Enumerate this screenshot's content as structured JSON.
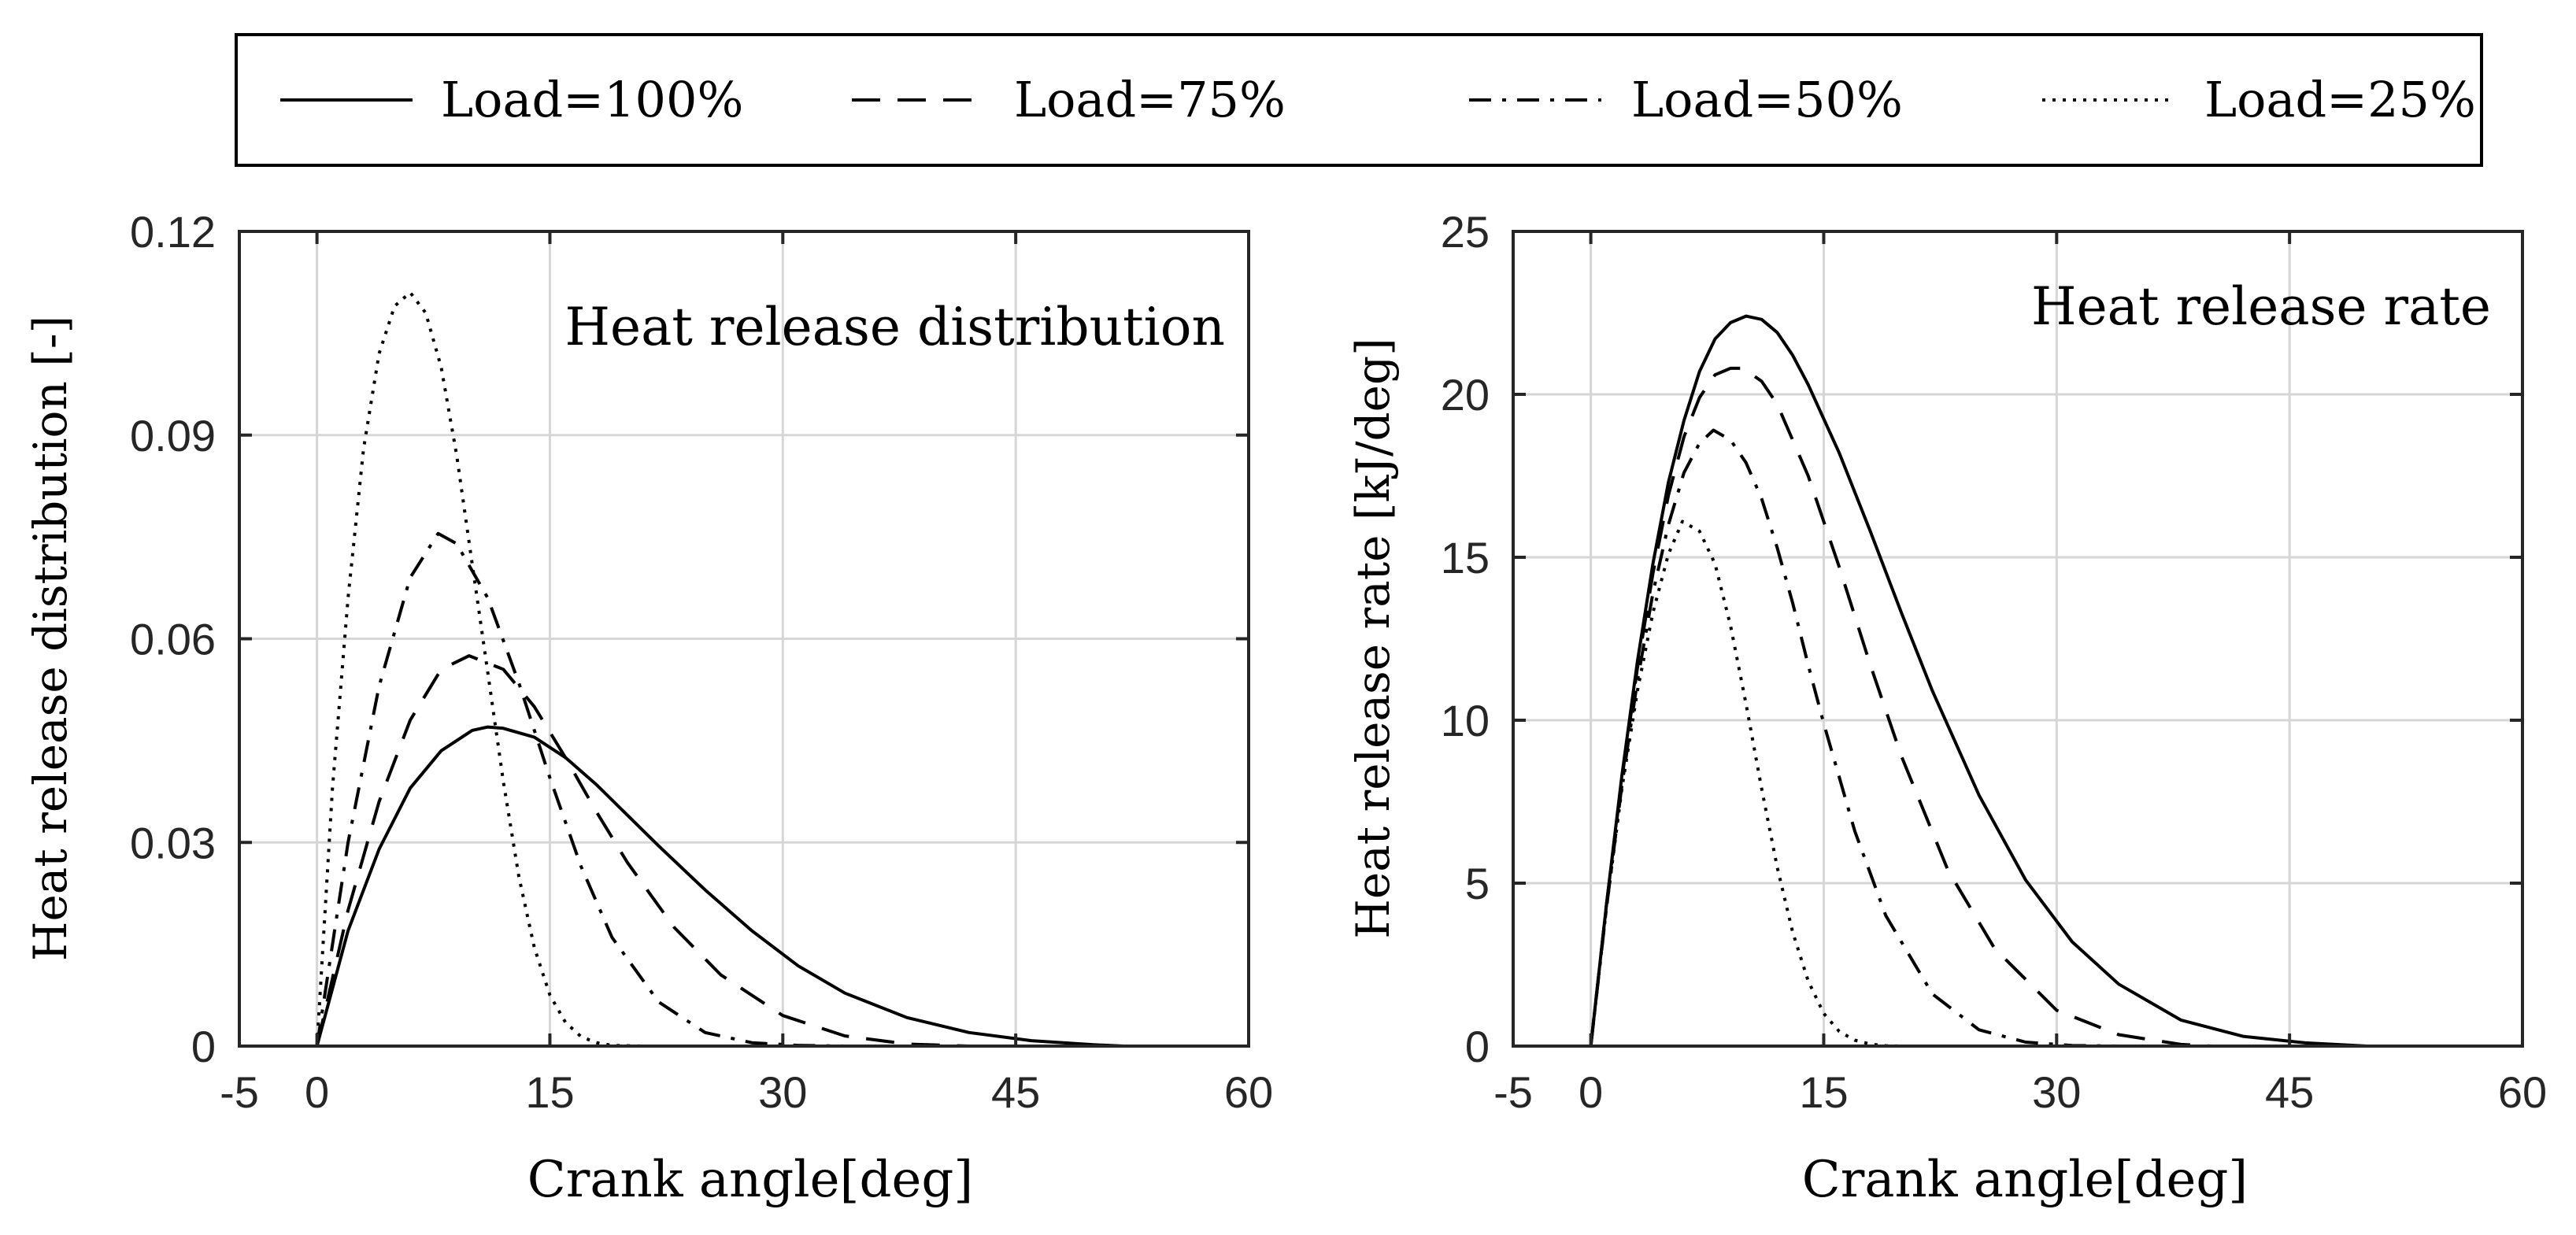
{
  "legend": {
    "entries": [
      {
        "label": "Load=100%",
        "style": "solid"
      },
      {
        "label": "Load=75%",
        "style": "dashed"
      },
      {
        "label": "Load=50%",
        "style": "dashdot"
      },
      {
        "label": "Load=25%",
        "style": "dotted"
      }
    ]
  },
  "chart_data": [
    {
      "type": "line",
      "title": "Heat release distribution",
      "xlabel": "Crank angle[deg]",
      "ylabel": "Heat release distribution [-]",
      "xlim": [
        -5,
        60
      ],
      "ylim": [
        0,
        0.12
      ],
      "xticks": [
        -5,
        0,
        15,
        30,
        45,
        60
      ],
      "yticks": [
        0,
        0.03,
        0.06,
        0.09,
        0.12
      ],
      "xtick_labels": [
        "-5",
        "0",
        "15",
        "30",
        "45",
        "60"
      ],
      "ytick_labels": [
        "0",
        "0.03",
        "0.06",
        "0.09",
        "0.12"
      ],
      "grid": true,
      "series": [
        {
          "name": "Load=100%",
          "style": "solid",
          "x": [
            0,
            2,
            4,
            6,
            8,
            10,
            11,
            12,
            14,
            16,
            18,
            20,
            22,
            25,
            28,
            31,
            34,
            38,
            42,
            46,
            50,
            52
          ],
          "y": [
            0,
            0.017,
            0.029,
            0.038,
            0.0435,
            0.0465,
            0.047,
            0.0468,
            0.0455,
            0.0425,
            0.0385,
            0.034,
            0.0295,
            0.023,
            0.017,
            0.0118,
            0.0078,
            0.0042,
            0.002,
            0.0008,
            0.0002,
            0
          ]
        },
        {
          "name": "Load=75%",
          "style": "dashed",
          "x": [
            0,
            2,
            4,
            6,
            8,
            9.8,
            12,
            14,
            16,
            18,
            20,
            23,
            26,
            30,
            34,
            38,
            42
          ],
          "y": [
            0,
            0.02,
            0.036,
            0.048,
            0.0555,
            0.0575,
            0.0555,
            0.05,
            0.0425,
            0.0345,
            0.027,
            0.0175,
            0.0105,
            0.0045,
            0.0015,
            0.0003,
            0
          ]
        },
        {
          "name": "Load=50%",
          "style": "dashdot",
          "x": [
            0,
            2,
            4,
            6,
            7.8,
            9,
            11,
            13,
            15,
            17,
            19,
            22,
            25,
            28,
            31,
            34
          ],
          "y": [
            0,
            0.03,
            0.053,
            0.069,
            0.0755,
            0.074,
            0.066,
            0.0535,
            0.0395,
            0.0265,
            0.016,
            0.0065,
            0.002,
            0.0005,
            0.0001,
            0
          ]
        },
        {
          "name": "Load=25%",
          "style": "dotted",
          "x": [
            0,
            1,
            2,
            3,
            4,
            5,
            6,
            7,
            8,
            9,
            10,
            11,
            12,
            13,
            14,
            15,
            16,
            17,
            18,
            19,
            21
          ],
          "y": [
            0,
            0.038,
            0.066,
            0.088,
            0.102,
            0.109,
            0.111,
            0.108,
            0.1,
            0.087,
            0.071,
            0.055,
            0.039,
            0.025,
            0.0145,
            0.0075,
            0.0035,
            0.0014,
            0.0005,
            0.0001,
            0
          ]
        }
      ]
    },
    {
      "type": "line",
      "title": "Heat release rate",
      "xlabel": "Crank angle[deg]",
      "ylabel": "Heat release rate [kJ/deg]",
      "xlim": [
        -5,
        60
      ],
      "ylim": [
        0,
        25
      ],
      "xticks": [
        -5,
        0,
        15,
        30,
        45,
        60
      ],
      "yticks": [
        0,
        5,
        10,
        15,
        20,
        25
      ],
      "xtick_labels": [
        "-5",
        "0",
        "15",
        "30",
        "45",
        "60"
      ],
      "ytick_labels": [
        "0",
        "5",
        "10",
        "15",
        "20",
        "25"
      ],
      "grid": true,
      "series": [
        {
          "name": "Load=100%",
          "style": "solid",
          "x": [
            0,
            1,
            2,
            3,
            4,
            5,
            6,
            7,
            8,
            9,
            10,
            11,
            12,
            13,
            14,
            16,
            18,
            20,
            22,
            25,
            28,
            31,
            34,
            38,
            42,
            46,
            50
          ],
          "y": [
            0,
            4.3,
            8.3,
            11.8,
            14.8,
            17.3,
            19.2,
            20.7,
            21.7,
            22.2,
            22.4,
            22.3,
            21.9,
            21.2,
            20.3,
            18.2,
            15.8,
            13.3,
            10.9,
            7.7,
            5.1,
            3.2,
            1.9,
            0.8,
            0.3,
            0.1,
            0
          ]
        },
        {
          "name": "Load=75%",
          "style": "dashed",
          "x": [
            0,
            1,
            2,
            3,
            4,
            5,
            6,
            7,
            8,
            9,
            9.8,
            11,
            12,
            14,
            16,
            18,
            20,
            23,
            26,
            30,
            34,
            38,
            40
          ],
          "y": [
            0,
            4.3,
            8.2,
            11.6,
            14.5,
            16.9,
            18.7,
            19.9,
            20.6,
            20.8,
            20.8,
            20.4,
            19.7,
            17.5,
            14.7,
            11.7,
            8.9,
            5.4,
            3.0,
            1.1,
            0.35,
            0.05,
            0
          ]
        },
        {
          "name": "Load=50%",
          "style": "dashdot",
          "x": [
            0,
            1,
            2,
            3,
            4,
            5,
            6,
            7,
            7.9,
            9,
            10,
            11,
            12,
            13,
            14,
            15,
            17,
            19,
            22,
            25,
            28,
            31,
            34
          ],
          "y": [
            0,
            4.2,
            8.0,
            11.2,
            13.9,
            16.0,
            17.6,
            18.5,
            18.9,
            18.6,
            17.9,
            16.8,
            15.3,
            13.6,
            11.7,
            9.9,
            6.6,
            4.0,
            1.6,
            0.5,
            0.12,
            0.02,
            0
          ]
        },
        {
          "name": "Load=25%",
          "style": "dotted",
          "x": [
            0,
            1,
            2,
            3,
            4,
            5,
            5.9,
            7,
            8,
            9,
            10,
            11,
            12,
            13,
            14,
            15,
            16,
            17,
            18,
            19,
            20
          ],
          "y": [
            0,
            4.2,
            7.9,
            10.9,
            13.3,
            15.1,
            16.1,
            15.8,
            14.8,
            12.9,
            10.5,
            7.9,
            5.5,
            3.5,
            2.0,
            1.0,
            0.45,
            0.18,
            0.06,
            0.01,
            0
          ]
        }
      ]
    }
  ]
}
